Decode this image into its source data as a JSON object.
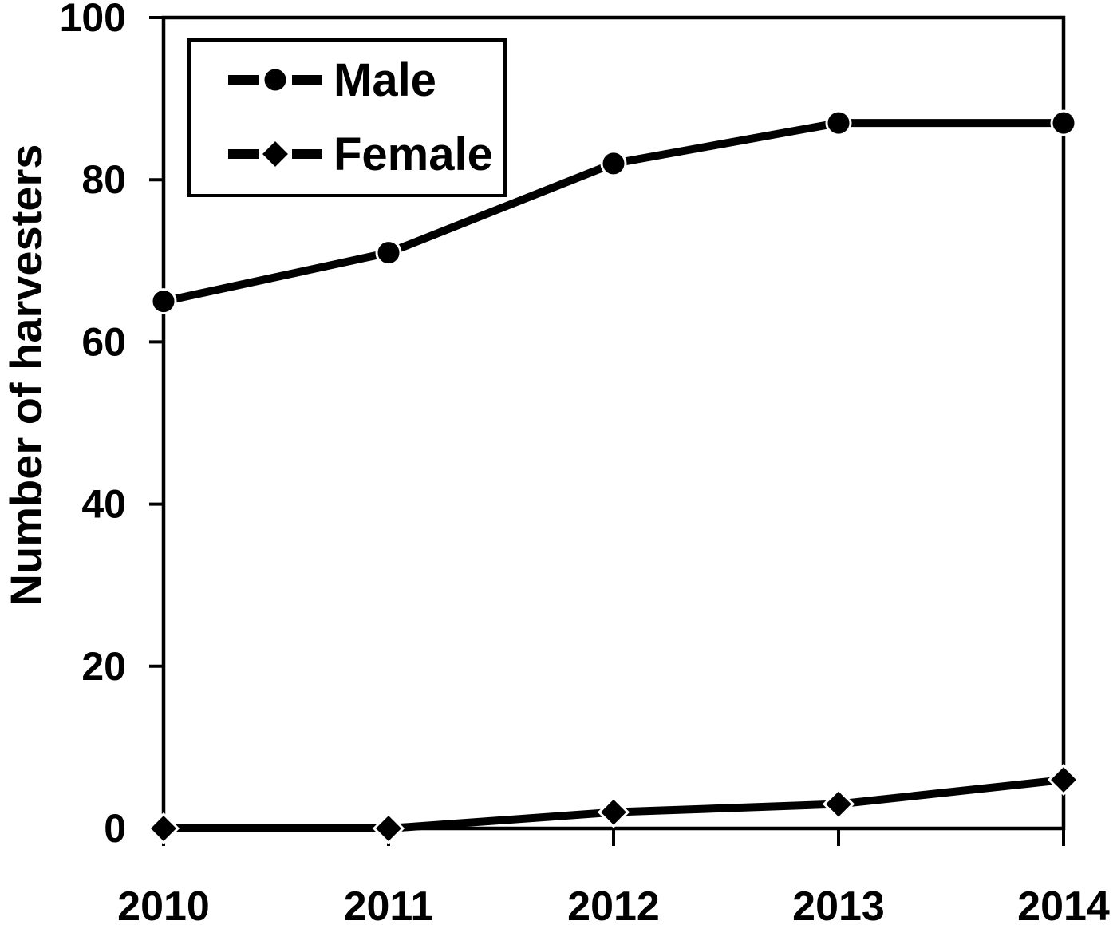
{
  "figure": {
    "background": "#ffffff",
    "ink": "#000000"
  },
  "chart_data": {
    "type": "line",
    "title": "",
    "xlabel": "",
    "ylabel": "Number of harvesters",
    "categories": [
      "2010",
      "2011",
      "2012",
      "2013",
      "2014"
    ],
    "series": [
      {
        "name": "Male",
        "marker": "circle-icon",
        "values": [
          65,
          71,
          82,
          87,
          87
        ]
      },
      {
        "name": "Female",
        "marker": "diamond-icon",
        "values": [
          0,
          0,
          2,
          3,
          6
        ]
      }
    ],
    "ylim": [
      0,
      100
    ],
    "yticks": [
      0,
      20,
      40,
      60,
      80,
      100
    ],
    "grid": false,
    "legend_position": "top-left",
    "legend_border": true
  }
}
